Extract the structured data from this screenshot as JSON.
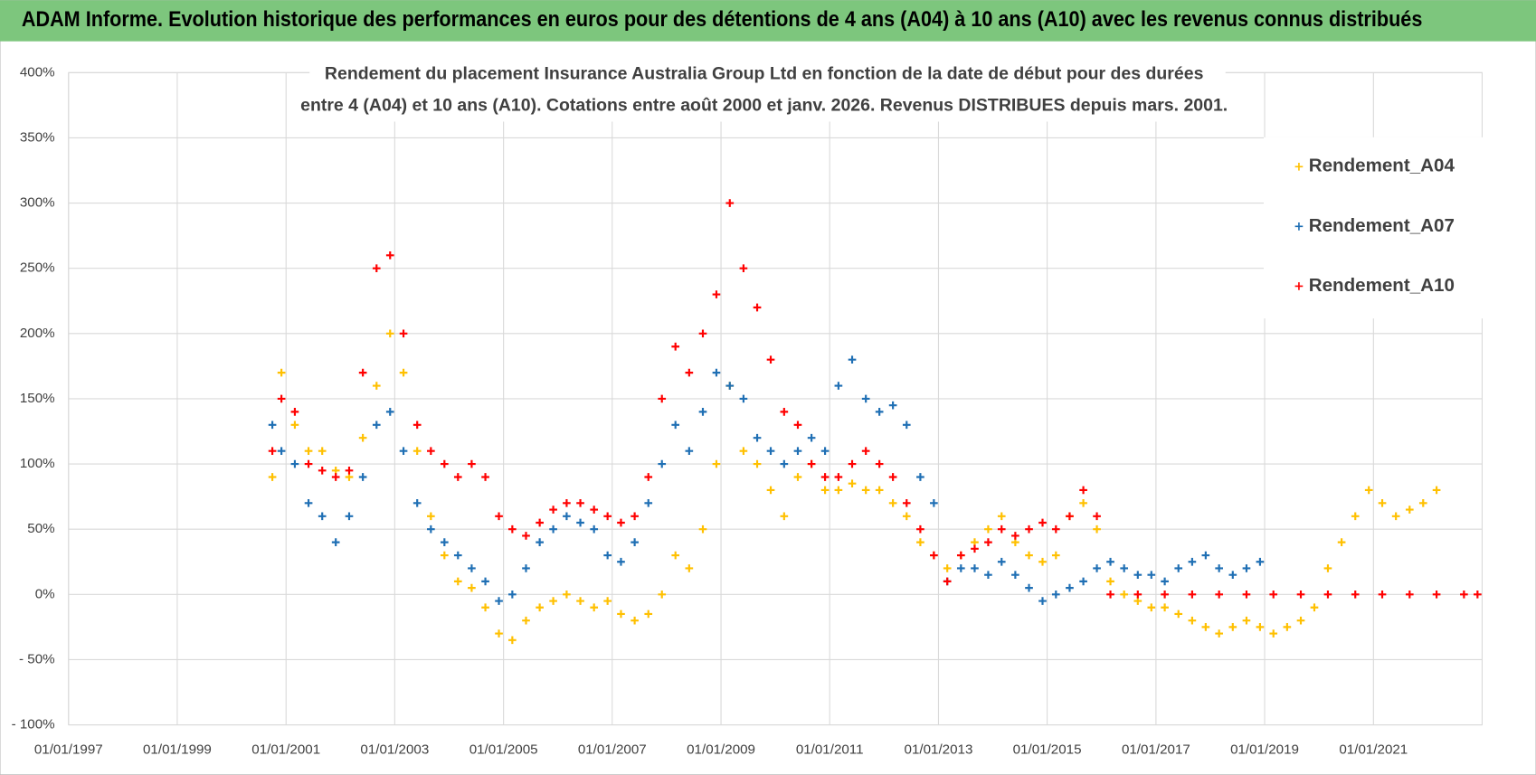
{
  "header": {
    "title": "ADAM Informe. Evolution historique des performances en euros pour des détentions de 4 ans (A04) à 10 ans (A10) avec les revenus connus distribués"
  },
  "chart_data": {
    "type": "scatter",
    "title": [
      "Rendement du placement Insurance Australia Group Ltd en fonction de la date de début pour des durées",
      "entre 4 (A04) et 10 ans (A10).  Cotations entre août 2000  et janv. 2026.  Revenus DISTRIBUES depuis mars. 2001."
    ],
    "xlim": [
      "1997-01-01",
      "2023-01-01"
    ],
    "xticks": [
      {
        "value": "1997-01-01",
        "label": "01/01/1997"
      },
      {
        "value": "1999-01-01",
        "label": "01/01/1999"
      },
      {
        "value": "2001-01-01",
        "label": "01/01/2001"
      },
      {
        "value": "2003-01-01",
        "label": "01/01/2003"
      },
      {
        "value": "2005-01-01",
        "label": "01/01/2005"
      },
      {
        "value": "2007-01-01",
        "label": "01/01/2007"
      },
      {
        "value": "2009-01-01",
        "label": "01/01/2009"
      },
      {
        "value": "2011-01-01",
        "label": "01/01/2011"
      },
      {
        "value": "2013-01-01",
        "label": "01/01/2013"
      },
      {
        "value": "2015-01-01",
        "label": "01/01/2015"
      },
      {
        "value": "2017-01-01",
        "label": "01/01/2017"
      },
      {
        "value": "2019-01-01",
        "label": "01/01/2019"
      },
      {
        "value": "2021-01-01",
        "label": "01/01/2021"
      }
    ],
    "ylim": [
      -100,
      400
    ],
    "yticks": [
      {
        "value": -100,
        "label": "- 100%"
      },
      {
        "value": -50,
        "label": "- 50%"
      },
      {
        "value": 0,
        "label": "0%"
      },
      {
        "value": 50,
        "label": "50%"
      },
      {
        "value": 100,
        "label": "100%"
      },
      {
        "value": 150,
        "label": "150%"
      },
      {
        "value": 200,
        "label": "200%"
      },
      {
        "value": 250,
        "label": "250%"
      },
      {
        "value": 300,
        "label": "300%"
      },
      {
        "value": 350,
        "label": "350%"
      },
      {
        "value": 400,
        "label": "400%"
      }
    ],
    "grid": true,
    "legend": "upper right",
    "series": [
      {
        "name": "Rendement_A04",
        "color": "#ffc000",
        "x": [
          "2000-10",
          "2000-12",
          "2001-03",
          "2001-06",
          "2001-09",
          "2001-12",
          "2002-03",
          "2002-06",
          "2002-09",
          "2002-12",
          "2003-03",
          "2003-06",
          "2003-09",
          "2003-12",
          "2004-03",
          "2004-06",
          "2004-09",
          "2004-12",
          "2005-03",
          "2005-06",
          "2005-09",
          "2005-12",
          "2006-03",
          "2006-06",
          "2006-09",
          "2006-12",
          "2007-03",
          "2007-06",
          "2007-09",
          "2007-12",
          "2008-03",
          "2008-06",
          "2008-09",
          "2008-12",
          "2009-03",
          "2009-06",
          "2009-09",
          "2009-12",
          "2010-03",
          "2010-06",
          "2010-09",
          "2010-12",
          "2011-03",
          "2011-06",
          "2011-09",
          "2011-12",
          "2012-03",
          "2012-06",
          "2012-09",
          "2012-12",
          "2013-03",
          "2013-06",
          "2013-09",
          "2013-12",
          "2014-03",
          "2014-06",
          "2014-09",
          "2014-12",
          "2015-03",
          "2015-06",
          "2015-09",
          "2015-12",
          "2016-03",
          "2016-06",
          "2016-09",
          "2016-12",
          "2017-03",
          "2017-06",
          "2017-09",
          "2017-12",
          "2018-03",
          "2018-06",
          "2018-09",
          "2018-12",
          "2019-03",
          "2019-06",
          "2019-09",
          "2019-12",
          "2020-03",
          "2020-06",
          "2020-09",
          "2020-12",
          "2021-03",
          "2021-06",
          "2021-09",
          "2021-12",
          "2022-03"
        ],
        "values": [
          90,
          170,
          130,
          110,
          110,
          95,
          90,
          120,
          160,
          200,
          170,
          110,
          60,
          30,
          10,
          5,
          -10,
          -30,
          -35,
          -20,
          -10,
          -5,
          0,
          -5,
          -10,
          -5,
          -15,
          -20,
          -15,
          0,
          30,
          20,
          50,
          100,
          160,
          110,
          100,
          80,
          60,
          90,
          100,
          80,
          80,
          85,
          80,
          80,
          70,
          60,
          40,
          30,
          20,
          30,
          40,
          50,
          60,
          40,
          30,
          25,
          30,
          60,
          70,
          50,
          10,
          0,
          -5,
          -10,
          -10,
          -15,
          -20,
          -25,
          -30,
          -25,
          -20,
          -25,
          -30,
          -25,
          -20,
          -10,
          20,
          40,
          60,
          80,
          70,
          60,
          65,
          70,
          80
        ]
      },
      {
        "name": "Rendement_A07",
        "color": "#1f6fb4",
        "x": [
          "2000-10",
          "2000-12",
          "2001-03",
          "2001-06",
          "2001-09",
          "2001-12",
          "2002-03",
          "2002-06",
          "2002-09",
          "2002-12",
          "2003-03",
          "2003-06",
          "2003-09",
          "2003-12",
          "2004-03",
          "2004-06",
          "2004-09",
          "2004-12",
          "2005-03",
          "2005-06",
          "2005-09",
          "2005-12",
          "2006-03",
          "2006-06",
          "2006-09",
          "2006-12",
          "2007-03",
          "2007-06",
          "2007-09",
          "2007-12",
          "2008-03",
          "2008-06",
          "2008-09",
          "2008-12",
          "2009-03",
          "2009-06",
          "2009-09",
          "2009-12",
          "2010-03",
          "2010-06",
          "2010-09",
          "2010-12",
          "2011-03",
          "2011-06",
          "2011-09",
          "2011-12",
          "2012-03",
          "2012-06",
          "2012-09",
          "2012-12",
          "2013-03",
          "2013-06",
          "2013-09",
          "2013-12",
          "2014-03",
          "2014-06",
          "2014-09",
          "2014-12",
          "2015-03",
          "2015-06",
          "2015-09",
          "2015-12",
          "2016-03",
          "2016-06",
          "2016-09",
          "2016-12",
          "2017-03",
          "2017-06",
          "2017-09",
          "2017-12",
          "2018-03",
          "2018-06",
          "2018-09",
          "2018-12"
        ],
        "values": [
          130,
          110,
          100,
          70,
          60,
          40,
          60,
          90,
          130,
          140,
          110,
          70,
          50,
          40,
          30,
          20,
          10,
          -5,
          0,
          20,
          40,
          50,
          60,
          55,
          50,
          30,
          25,
          40,
          70,
          100,
          130,
          110,
          140,
          170,
          160,
          150,
          120,
          110,
          100,
          110,
          120,
          110,
          160,
          180,
          150,
          140,
          145,
          130,
          90,
          70,
          10,
          20,
          20,
          15,
          25,
          15,
          5,
          -5,
          0,
          5,
          10,
          20,
          25,
          20,
          15,
          15,
          10,
          20,
          25,
          30,
          20,
          15,
          20,
          25
        ]
      },
      {
        "name": "Rendement_A10",
        "color": "#ff0000",
        "x": [
          "2000-10",
          "2000-12",
          "2001-03",
          "2001-06",
          "2001-09",
          "2001-12",
          "2002-03",
          "2002-06",
          "2002-09",
          "2002-12",
          "2003-03",
          "2003-06",
          "2003-09",
          "2003-12",
          "2004-03",
          "2004-06",
          "2004-09",
          "2004-12",
          "2005-03",
          "2005-06",
          "2005-09",
          "2005-12",
          "2006-03",
          "2006-06",
          "2006-09",
          "2006-12",
          "2007-03",
          "2007-06",
          "2007-09",
          "2007-12",
          "2008-03",
          "2008-06",
          "2008-09",
          "2008-12",
          "2009-03",
          "2009-06",
          "2009-09",
          "2009-12",
          "2010-03",
          "2010-06",
          "2010-09",
          "2010-12",
          "2011-03",
          "2011-06",
          "2011-09",
          "2011-12",
          "2012-03",
          "2012-06",
          "2012-09",
          "2012-12",
          "2013-03",
          "2013-06",
          "2013-09",
          "2013-12",
          "2014-03",
          "2014-06",
          "2014-09",
          "2014-12",
          "2015-03",
          "2015-06",
          "2015-09",
          "2015-12",
          "2016-03",
          "2016-09",
          "2017-03",
          "2017-09",
          "2018-03",
          "2018-09",
          "2019-03",
          "2019-09",
          "2020-03",
          "2020-09",
          "2021-03",
          "2021-09",
          "2022-03",
          "2022-09",
          "2022-12"
        ],
        "values": [
          110,
          150,
          140,
          100,
          95,
          90,
          95,
          170,
          250,
          260,
          200,
          130,
          110,
          100,
          90,
          100,
          90,
          60,
          50,
          45,
          55,
          65,
          70,
          70,
          65,
          60,
          55,
          60,
          90,
          150,
          190,
          170,
          200,
          230,
          300,
          250,
          220,
          180,
          140,
          130,
          100,
          90,
          90,
          100,
          110,
          100,
          90,
          70,
          50,
          30,
          10,
          30,
          35,
          40,
          50,
          45,
          50,
          55,
          50,
          60,
          80,
          60,
          0,
          0,
          0,
          0,
          0,
          0,
          0,
          0,
          0,
          0,
          0,
          0,
          0,
          0,
          0
        ]
      }
    ]
  }
}
